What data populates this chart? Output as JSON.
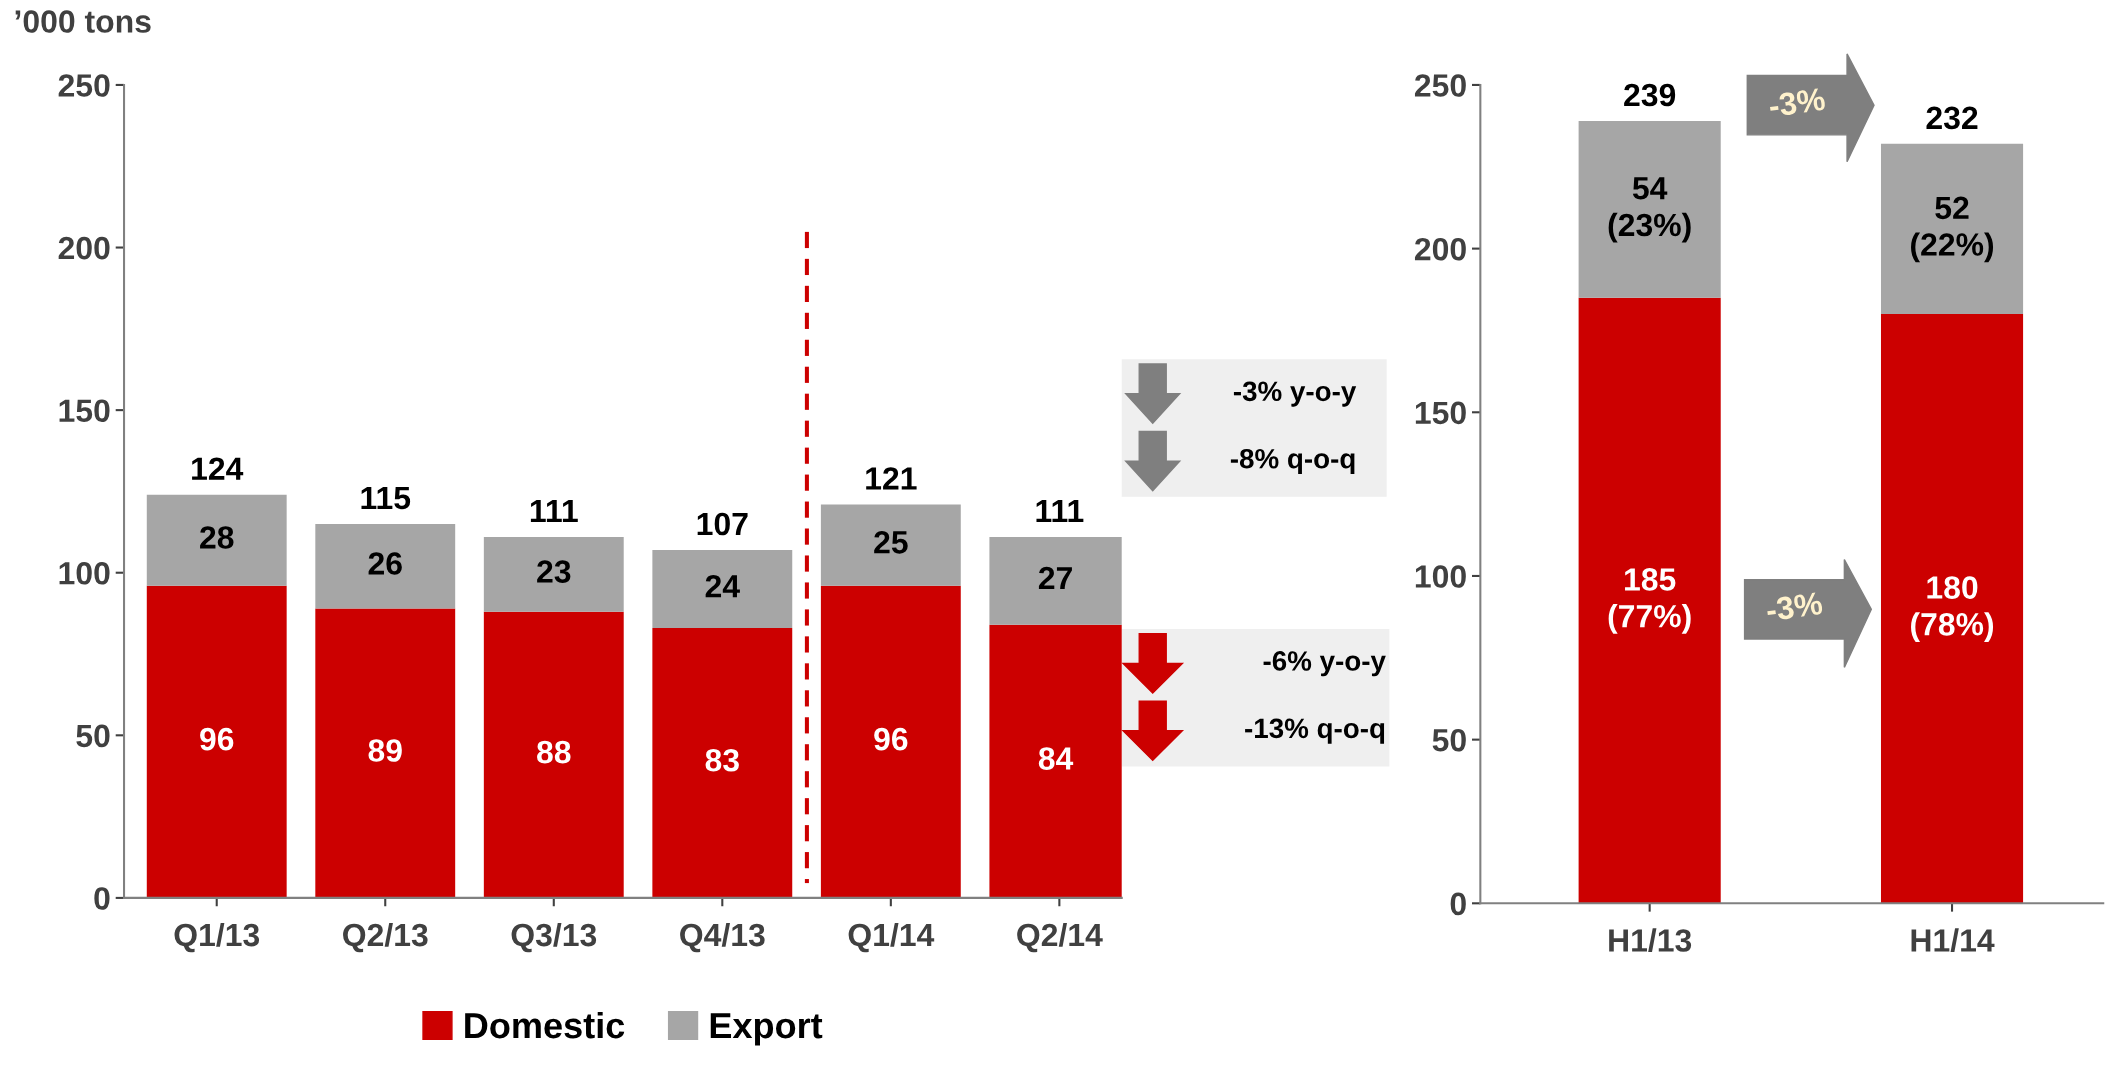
{
  "chart_data": [
    {
      "type": "bar",
      "ylabel": "’000 tons",
      "categories": [
        "Q1/13",
        "Q2/13",
        "Q3/13",
        "Q4/13",
        "Q1/14",
        "Q2/14"
      ],
      "stacked": true,
      "series": [
        {
          "name": "Domestic",
          "color": "#cc0000",
          "values": [
            96,
            89,
            88,
            83,
            96,
            84
          ]
        },
        {
          "name": "Export",
          "color": "#a6a6a6",
          "values": [
            28,
            26,
            23,
            24,
            25,
            27
          ]
        }
      ],
      "totals": [
        "124",
        "115",
        "111",
        "107",
        "121",
        "111"
      ],
      "data_labels": true,
      "ylim": [
        0,
        250
      ],
      "yticks": [
        0,
        50,
        100,
        150,
        200,
        250
      ],
      "grid": false,
      "legend": "bottom",
      "annotations": [
        "-3% y-o-y",
        "-8% q-o-q",
        "-6% y-o-y",
        "-13% q-o-q"
      ]
    },
    {
      "type": "bar",
      "categories": [
        "H1/13",
        "H1/14"
      ],
      "stacked": true,
      "series": [
        {
          "color": "#cc0000",
          "values": [
            185,
            180
          ],
          "value_labels": [
            "185\n(77%)",
            "180\n(78%)"
          ]
        },
        {
          "color": "#a6a6a6",
          "values": [
            54,
            52
          ],
          "value_labels": [
            "54\n(23%)",
            "52\n(22%)"
          ]
        }
      ],
      "totals": [
        "239",
        "232"
      ],
      "ylim": [
        0,
        250
      ],
      "yticks": [
        0,
        50,
        100,
        150,
        200,
        250
      ],
      "grid": false,
      "legend": false,
      "annotations": [
        "-3%",
        "-3%"
      ]
    }
  ]
}
